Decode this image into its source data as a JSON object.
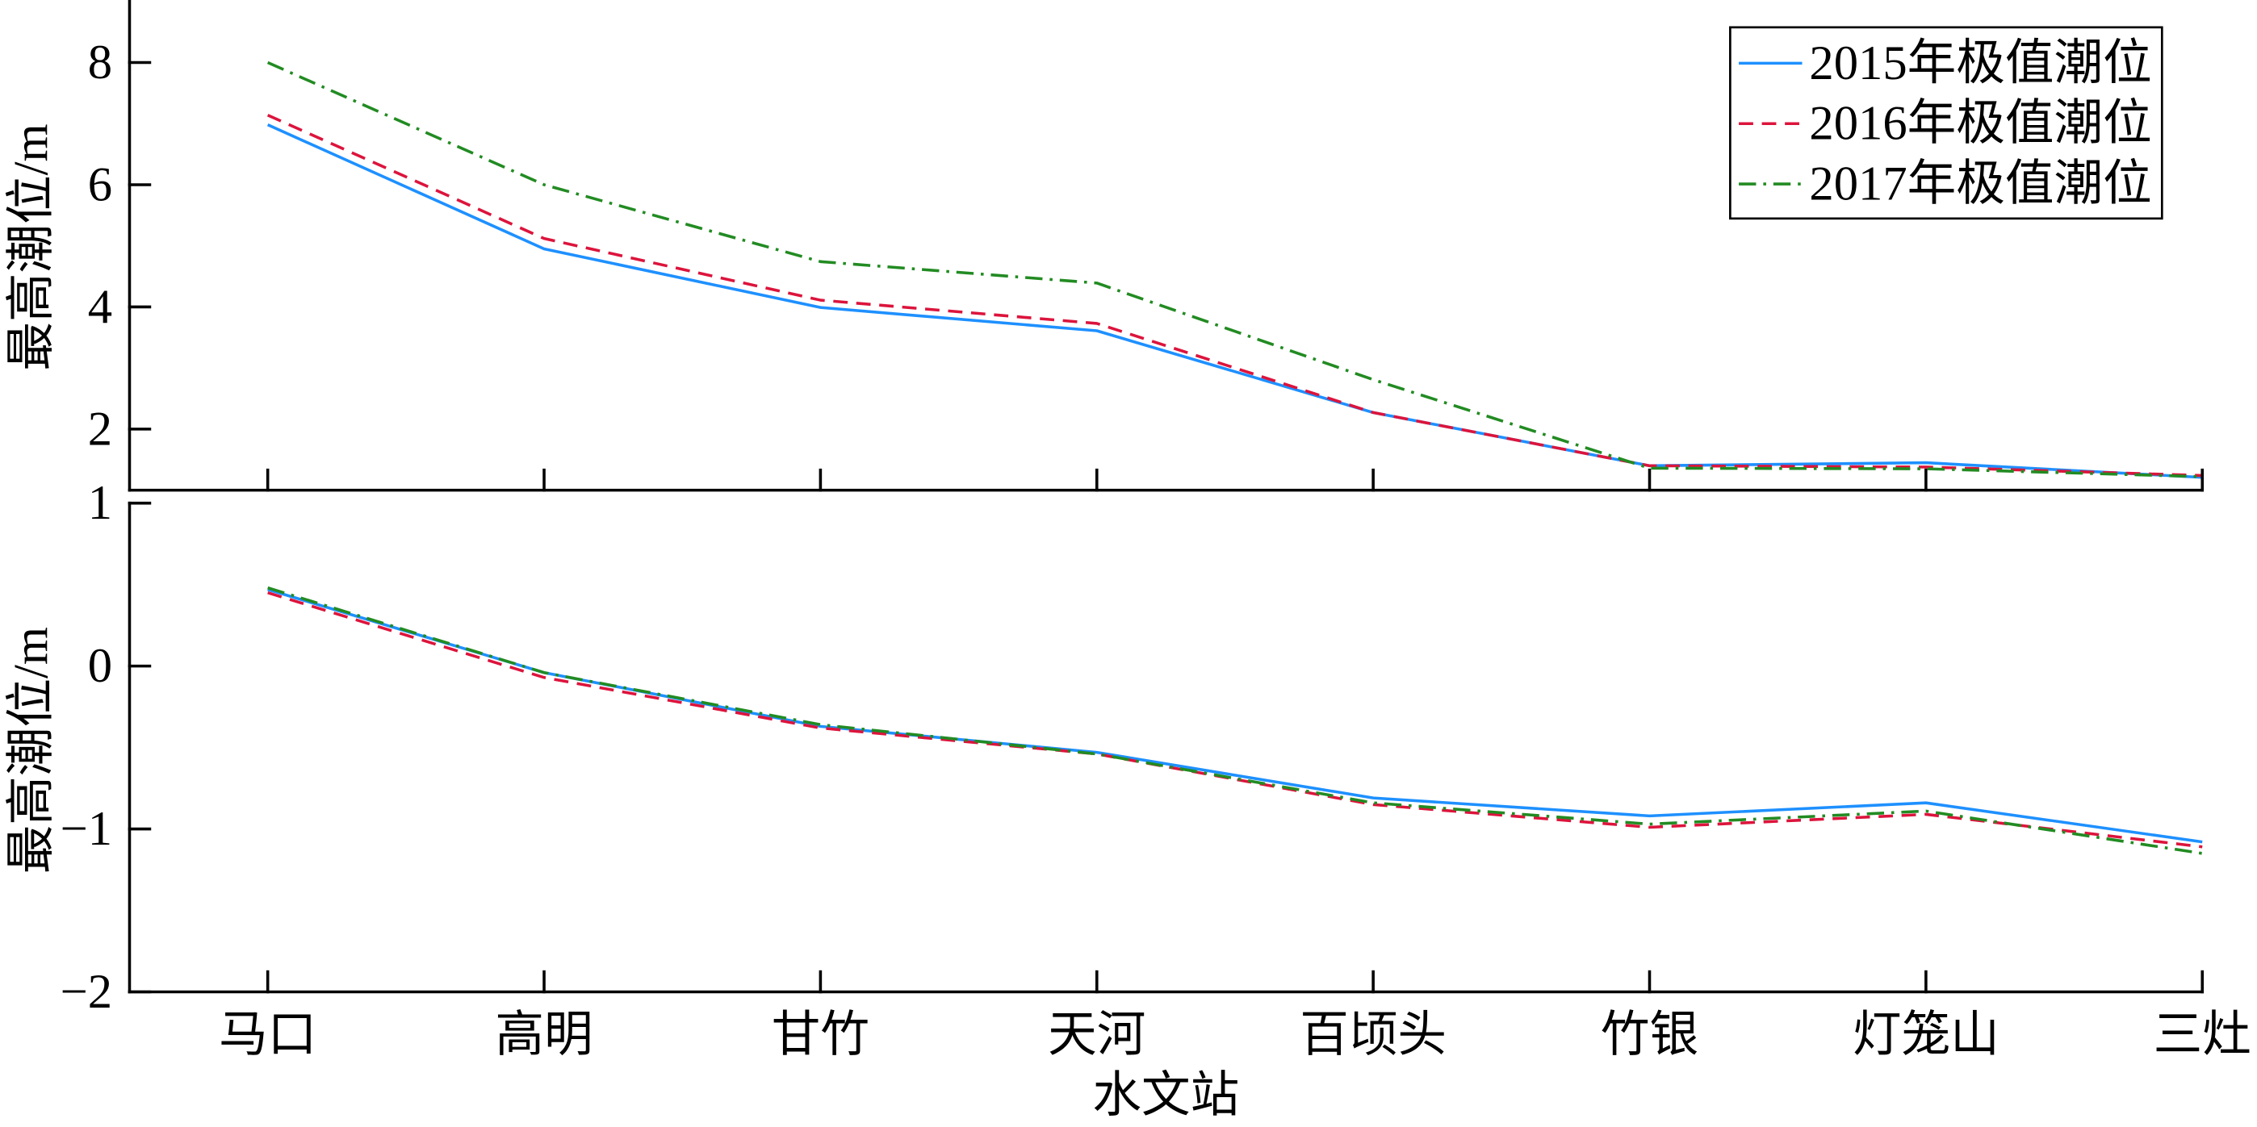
{
  "chart_data": [
    {
      "type": "line",
      "categories": [
        "马口",
        "高明",
        "甘竹",
        "天河",
        "百顷头",
        "竹银",
        "灯笼山",
        "三灶"
      ],
      "ylabel": "最高潮位/m",
      "ylim": [
        1,
        9
      ],
      "yticks": [
        2,
        4,
        6,
        8
      ],
      "ytick_labels": [
        "2",
        "4",
        "6",
        "8"
      ],
      "grid": false,
      "legend": "top-right",
      "series": [
        {
          "name": "2015年极值潮位",
          "color": "#1e90ff",
          "line_style": "solid",
          "values": [
            6.98,
            4.95,
            3.99,
            3.61,
            2.27,
            1.4,
            1.45,
            1.21
          ]
        },
        {
          "name": "2016年极值潮位",
          "color": "#dc143c",
          "line_style": "dashed",
          "values": [
            7.14,
            5.12,
            4.11,
            3.73,
            2.27,
            1.4,
            1.38,
            1.24
          ]
        },
        {
          "name": "2017年极值潮位",
          "color": "#228b22",
          "line_style": "dash-dot",
          "values": [
            8.0,
            6.0,
            4.74,
            4.39,
            2.81,
            1.36,
            1.35,
            1.22
          ]
        }
      ]
    },
    {
      "type": "line",
      "categories": [
        "马口",
        "高明",
        "甘竹",
        "天河",
        "百顷头",
        "竹银",
        "灯笼山",
        "三灶"
      ],
      "xlabel": "水文站",
      "ylabel": "最高潮位/m",
      "ylim": [
        -2,
        1
      ],
      "yticks": [
        -2,
        -1,
        0,
        1
      ],
      "ytick_labels": [
        "−2",
        "−1",
        "0",
        "1"
      ],
      "grid": false,
      "series": [
        {
          "name": "2015年极值潮位",
          "color": "#1e90ff",
          "line_style": "solid",
          "values": [
            0.47,
            -0.04,
            -0.37,
            -0.53,
            -0.81,
            -0.92,
            -0.84,
            -1.08
          ]
        },
        {
          "name": "2016年极值潮位",
          "color": "#dc143c",
          "line_style": "dashed",
          "values": [
            0.45,
            -0.07,
            -0.38,
            -0.54,
            -0.85,
            -0.99,
            -0.91,
            -1.11
          ]
        },
        {
          "name": "2017年极值潮位",
          "color": "#228b22",
          "line_style": "dash-dot",
          "values": [
            0.48,
            -0.04,
            -0.36,
            -0.54,
            -0.84,
            -0.97,
            -0.89,
            -1.15
          ]
        }
      ]
    }
  ]
}
